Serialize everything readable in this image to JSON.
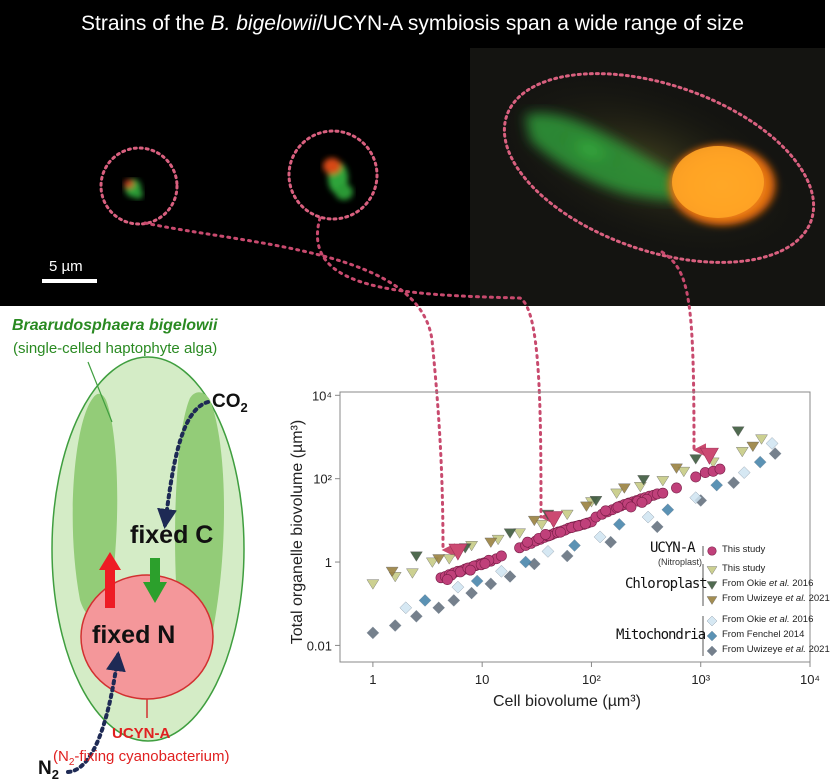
{
  "title": {
    "before": "Strains of the ",
    "italic": "B. bigelowii",
    "after": "/UCYN-A symbiosis span a wide range of size"
  },
  "scale_bar": {
    "label": "5 µm"
  },
  "diagram": {
    "host_name": "Braarudosphaera bigelowii",
    "host_desc": "(single-celled haptophyte alga)",
    "co2": "CO",
    "co2_sub": "2",
    "n2": "N",
    "n2_sub": "2",
    "fixed_c": "fixed C",
    "fixed_n": "fixed N",
    "symbiont_name": "UCYN-A",
    "symbiont_desc_pre": "(N",
    "symbiont_desc_sub": "2",
    "symbiont_desc_post": "-fixing cyanobacterium)"
  },
  "chart_data": {
    "type": "scatter",
    "x_scale": "log",
    "y_scale": "log",
    "xlabel": "Cell biovolume (µm³)",
    "ylabel": "Total organelle biovolume (µm³)",
    "xlim": [
      0.5,
      10000
    ],
    "ylim": [
      0.004,
      12000
    ],
    "x_ticks": [
      "1",
      "10",
      "10²",
      "10³",
      "10⁴"
    ],
    "y_ticks": [
      "0.01",
      "1",
      "10²",
      "10⁴"
    ],
    "highlighted_strains": [
      {
        "cell_biovolume": 6,
        "organelle_biovolume": 1
      },
      {
        "cell_biovolume": 45,
        "organelle_biovolume": 6
      },
      {
        "cell_biovolume": 1200,
        "organelle_biovolume": 200
      }
    ],
    "legend": {
      "ucyn_title": "UCYN-A",
      "ucyn_sub": "(Nitroplast)",
      "chloro_title": "Chloroplast",
      "mito_title": "Mitochondria",
      "entries": [
        {
          "group": "ucyn",
          "marker": "circle",
          "color": "#c0407a",
          "pre": "This study",
          "ital": "",
          "post": ""
        },
        {
          "group": "chloro",
          "marker": "triangle",
          "color": "#c7cc86",
          "pre": "This study",
          "ital": "",
          "post": ""
        },
        {
          "group": "chloro",
          "marker": "triangle",
          "color": "#3e5a3e",
          "pre": "From Okie ",
          "ital": "et al.",
          "post": " 2016"
        },
        {
          "group": "chloro",
          "marker": "triangle",
          "color": "#9a8140",
          "pre": "From Uwizeye ",
          "ital": "et al.",
          "post": " 2021"
        },
        {
          "group": "mito",
          "marker": "diamond",
          "color": "#cfe4f2",
          "pre": "From Okie ",
          "ital": "et al.",
          "post": " 2016"
        },
        {
          "group": "mito",
          "marker": "diamond",
          "color": "#3f7fa8",
          "pre": "From Fenchel 2014",
          "ital": "",
          "post": ""
        },
        {
          "group": "mito",
          "marker": "diamond",
          "color": "#5e6a78",
          "pre": "From Uwizeye ",
          "ital": "et al.",
          "post": " 2021"
        }
      ]
    },
    "series": [
      {
        "name": "UCYN-A (Nitroplast) — This study",
        "marker": "circle",
        "color": "#c0407a",
        "x": [
          4.2,
          4.6,
          5,
          5.5,
          6,
          6.5,
          7,
          7.5,
          8,
          8.7,
          9.5,
          10.3,
          11,
          12,
          13.5,
          15,
          5.2,
          6.3,
          7.4,
          8.4,
          9.8,
          11.5,
          4.8,
          7.8,
          10.6,
          22,
          25,
          28,
          31,
          34,
          37,
          40,
          43,
          46,
          50,
          54,
          58,
          62,
          67,
          72,
          78,
          85,
          92,
          100,
          26,
          33,
          41,
          49,
          57,
          66,
          76,
          88,
          38,
          52,
          110,
          125,
          140,
          155,
          170,
          185,
          200,
          220,
          240,
          260,
          285,
          310,
          340,
          370,
          400,
          135,
          175,
          215,
          265,
          320,
          230,
          290,
          450,
          600,
          900,
          1100,
          1300,
          1500
        ],
        "y": [
          0.42,
          0.45,
          0.5,
          0.55,
          0.6,
          0.62,
          0.68,
          0.7,
          0.75,
          0.82,
          0.9,
          0.95,
          1,
          1.05,
          1.2,
          1.4,
          0.48,
          0.58,
          0.72,
          0.8,
          0.86,
          1.1,
          0.38,
          0.64,
          0.92,
          2.2,
          2.5,
          2.8,
          3.2,
          3.5,
          3.9,
          4.2,
          4.5,
          4.9,
          5.3,
          5.6,
          6,
          6.5,
          6.9,
          7.2,
          7.6,
          8,
          8.6,
          9.2,
          3,
          3.7,
          4.3,
          5.1,
          5.8,
          6.7,
          7.4,
          8.3,
          4.6,
          5.2,
          12,
          14,
          16,
          18,
          20,
          22,
          24,
          26,
          28,
          30,
          33,
          35,
          38,
          40,
          43,
          17,
          21,
          25,
          29,
          32,
          21,
          27,
          45,
          60,
          110,
          140,
          150,
          170
        ]
      },
      {
        "name": "Chloroplast — This study",
        "marker": "triangle",
        "color": "#c7cc86",
        "x": [
          1,
          1.6,
          2.3,
          3.5,
          5,
          8,
          14,
          22,
          35,
          60,
          100,
          170,
          280,
          450,
          700,
          1300,
          2400,
          3600
        ],
        "y": [
          0.3,
          0.45,
          0.55,
          1.0,
          1.2,
          2.5,
          3.5,
          5,
          8,
          14,
          28,
          45,
          65,
          90,
          150,
          250,
          450,
          900
        ]
      },
      {
        "name": "Chloroplast — From Okie et al. 2016",
        "marker": "triangle",
        "color": "#3e5a3e",
        "x": [
          2.5,
          7,
          18,
          40,
          110,
          300,
          900,
          2200
        ],
        "y": [
          1.4,
          2.2,
          5,
          14,
          30,
          95,
          300,
          1400
        ]
      },
      {
        "name": "Chloroplast — From Uwizeye et al. 2021",
        "marker": "triangle",
        "color": "#9a8140",
        "x": [
          1.5,
          4,
          12,
          30,
          90,
          200,
          600,
          3000
        ],
        "y": [
          0.6,
          1.2,
          3,
          10,
          22,
          60,
          180,
          600
        ]
      },
      {
        "name": "Mitochondria — From Okie et al. 2016",
        "marker": "diamond",
        "color": "#cfe4f2",
        "x": [
          2,
          6,
          15,
          40,
          120,
          330,
          900,
          2500,
          4500
        ],
        "y": [
          0.08,
          0.25,
          0.6,
          1.8,
          4,
          12,
          35,
          140,
          700
        ]
      },
      {
        "name": "Mitochondria — From Fenchel 2014",
        "marker": "diamond",
        "color": "#3f7fa8",
        "x": [
          3,
          9,
          25,
          70,
          180,
          500,
          1400,
          3500
        ],
        "y": [
          0.12,
          0.35,
          1,
          2.5,
          8,
          18,
          70,
          250
        ]
      },
      {
        "name": "Mitochondria — From Uwizeye et al. 2021",
        "marker": "diamond",
        "color": "#5e6a78",
        "x": [
          1,
          1.6,
          2.5,
          4,
          5.5,
          8,
          12,
          18,
          30,
          60,
          150,
          400,
          1000,
          2000,
          4800
        ],
        "y": [
          0.02,
          0.03,
          0.05,
          0.08,
          0.12,
          0.18,
          0.3,
          0.45,
          0.9,
          1.4,
          3,
          7,
          30,
          80,
          400
        ]
      }
    ]
  }
}
